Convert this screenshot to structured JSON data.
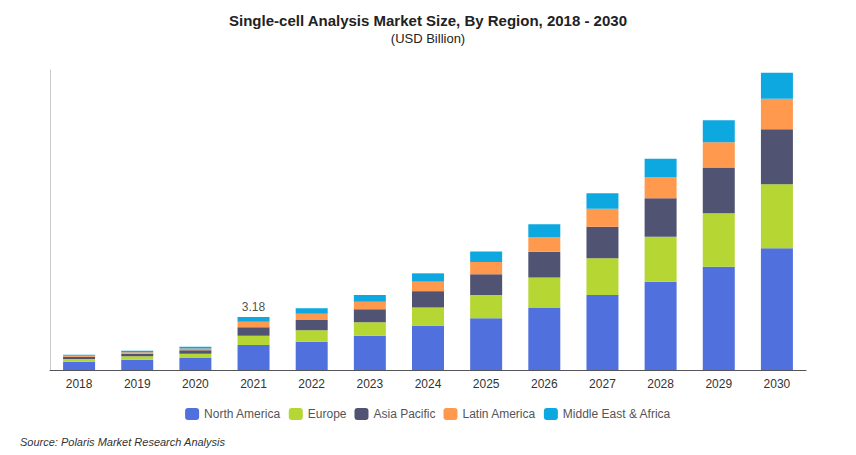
{
  "chart_data": {
    "type": "bar",
    "stacked": true,
    "title": "Single-cell Analysis Market Size, By Region, 2018 - 2030",
    "subtitle": "(USD Billion)",
    "source": "Source: Polaris Market Research Analysis",
    "categories": [
      "2018",
      "2019",
      "2020",
      "2021",
      "2022",
      "2023",
      "2024",
      "2025",
      "2026",
      "2027",
      "2028",
      "2029",
      "2030"
    ],
    "series": [
      {
        "name": "North America",
        "values": [
          0.5,
          0.62,
          0.72,
          1.5,
          1.7,
          2.05,
          2.65,
          3.1,
          3.75,
          4.5,
          5.3,
          6.2,
          7.3
        ]
      },
      {
        "name": "Europe",
        "values": [
          0.16,
          0.2,
          0.26,
          0.55,
          0.68,
          0.82,
          1.1,
          1.4,
          1.8,
          2.2,
          2.7,
          3.2,
          3.85
        ]
      },
      {
        "name": "Asia Pacific",
        "values": [
          0.13,
          0.16,
          0.2,
          0.52,
          0.62,
          0.78,
          0.98,
          1.25,
          1.55,
          1.9,
          2.3,
          2.75,
          3.3
        ]
      },
      {
        "name": "Latin America",
        "values": [
          0.07,
          0.09,
          0.11,
          0.32,
          0.37,
          0.45,
          0.57,
          0.73,
          0.88,
          1.07,
          1.28,
          1.52,
          1.82
        ]
      },
      {
        "name": "Middle East & Africa",
        "values": [
          0.06,
          0.08,
          0.1,
          0.29,
          0.33,
          0.4,
          0.5,
          0.63,
          0.76,
          0.93,
          1.1,
          1.31,
          1.57
        ]
      }
    ],
    "annotations": [
      {
        "text": "3.18",
        "x": "2021",
        "y": 3.18
      }
    ],
    "ylim": [
      0,
      18
    ],
    "tick_labels": "x",
    "grid": false,
    "legend": "bottom"
  }
}
